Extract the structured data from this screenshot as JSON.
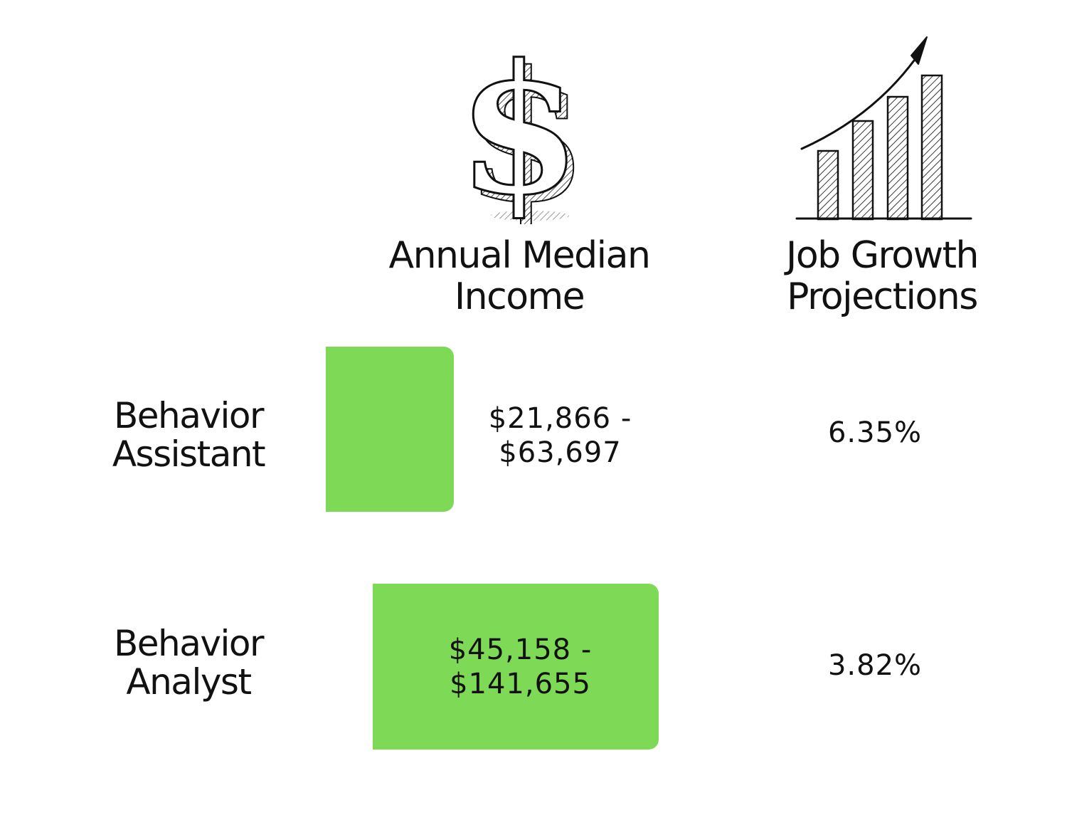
{
  "chart_data": {
    "type": "table",
    "columns": [
      {
        "label_lines": [
          "Annual Median",
          "Income"
        ],
        "icon": "dollar-sign-icon"
      },
      {
        "label_lines": [
          "Job Growth",
          "Projections"
        ],
        "icon": "growth-bar-chart-icon"
      }
    ],
    "rows": [
      {
        "label_lines": [
          "Behavior",
          "Assistant"
        ],
        "income_lines": [
          "$21,866 -",
          "$63,697"
        ],
        "income_low": 21866,
        "income_high": 63697,
        "growth": "6.35%"
      },
      {
        "label_lines": [
          "Behavior",
          "Analyst"
        ],
        "income_lines": [
          "$45,158 -",
          "$141,655"
        ],
        "income_low": 45158,
        "income_high": 141655,
        "growth": "3.82%"
      }
    ],
    "bar_color": "#7ed957"
  }
}
